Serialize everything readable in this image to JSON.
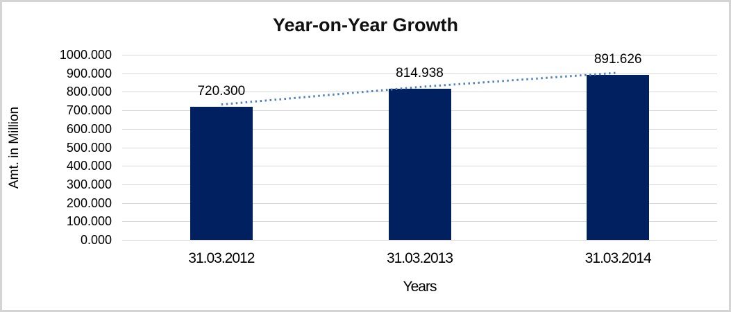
{
  "chart_data": {
    "type": "bar",
    "title": "Year-on-Year Growth",
    "xlabel": "Years",
    "ylabel": "Amt. in Million",
    "categories": [
      "31.03.2012",
      "31.03.2013",
      "31.03.2014"
    ],
    "values": [
      720.3,
      814.938,
      891.626
    ],
    "data_labels": [
      "720.300",
      "814.938",
      "891.626"
    ],
    "ytick_labels": [
      "1000.000",
      "900.000",
      "800.000",
      "700.000",
      "600.000",
      "500.000",
      "400.000",
      "300.000",
      "200.000",
      "100.000",
      "0.000"
    ],
    "ylim": [
      0,
      1000
    ],
    "grid": true,
    "legend": "none",
    "trendline": {
      "style": "dotted",
      "points": [
        720.3,
        814.938,
        891.626
      ]
    },
    "colors": {
      "bar": "#002060",
      "trendline": "#4f81bd",
      "gridline": "#d9d9d9",
      "frame_border": "#d4d4d4",
      "text": "#000000"
    }
  }
}
